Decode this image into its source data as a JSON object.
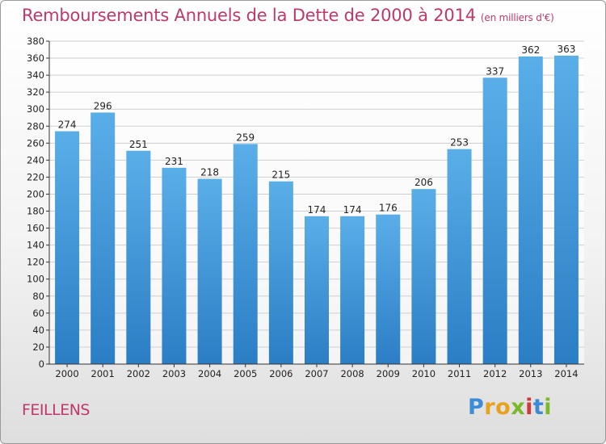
{
  "header": {
    "title": "Remboursements Annuels de la Dette de 2000 à 2014",
    "subtitle": "(en milliers d'€)"
  },
  "footer": {
    "commune": "FEILLENS",
    "logo_text": "Proxiti",
    "logo_letters": [
      {
        "char": "P",
        "color": "#3b8bd6"
      },
      {
        "char": "r",
        "color": "#e8a11c"
      },
      {
        "char": "o",
        "color": "#e8a11c"
      },
      {
        "char": "x",
        "color": "#7bb82a"
      },
      {
        "char": "i",
        "color": "#d13a3a"
      },
      {
        "char": "t",
        "color": "#3b8bd6"
      },
      {
        "char": "i",
        "color": "#7bb82a"
      }
    ]
  },
  "colors": {
    "bar_top": "#5aaee8",
    "bar_bottom": "#2b7ec4",
    "grid": "#cfcfcf",
    "axis": "#333333",
    "accent": "#c0386b"
  },
  "chart_data": {
    "type": "bar",
    "categories": [
      "2000",
      "2001",
      "2002",
      "2003",
      "2004",
      "2005",
      "2006",
      "2007",
      "2008",
      "2009",
      "2010",
      "2011",
      "2012",
      "2013",
      "2014"
    ],
    "values": [
      274,
      296,
      251,
      231,
      218,
      259,
      215,
      174,
      174,
      176,
      206,
      253,
      337,
      362,
      363
    ],
    "ylim": [
      0,
      380
    ],
    "ytick_step": 20,
    "grid": true,
    "data_labels": true
  }
}
